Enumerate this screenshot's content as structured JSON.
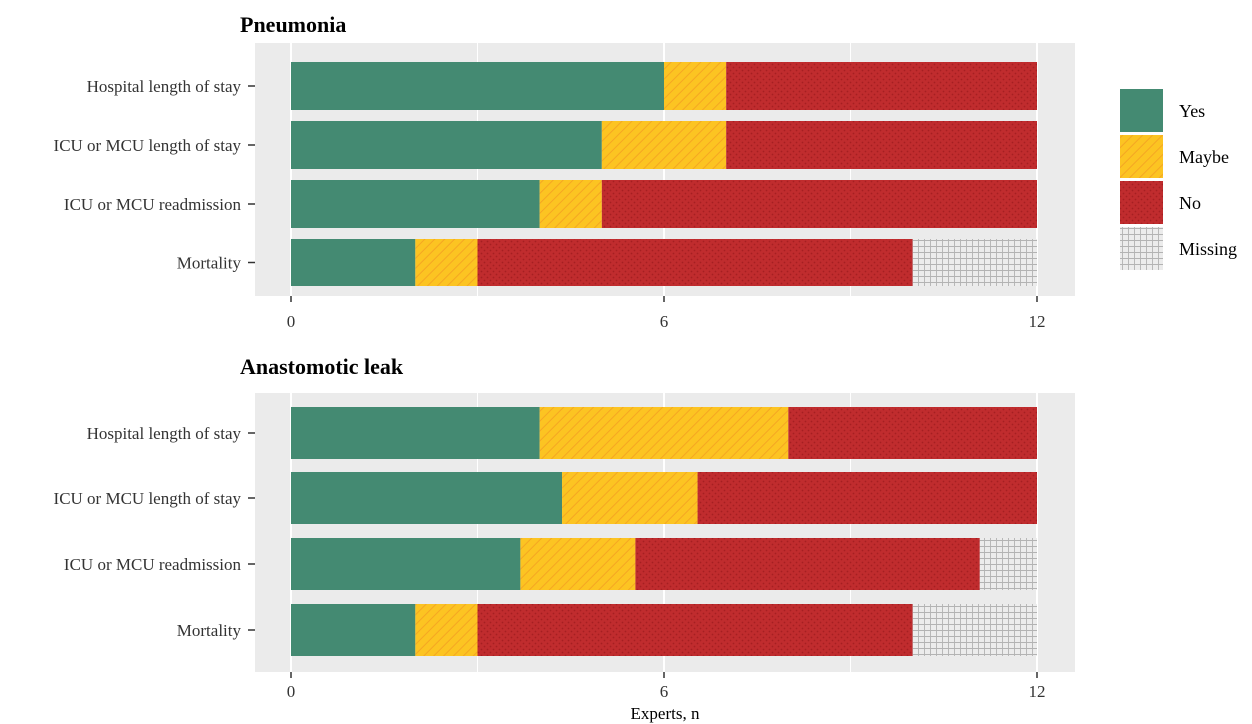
{
  "chart_data": [
    {
      "type": "bar",
      "orientation": "horizontal",
      "stacked": true,
      "title": "Pneumonia",
      "categories": [
        "Hospital length of stay",
        "ICU or MCU length of stay",
        "ICU or MCU readmission",
        "Mortality"
      ],
      "series": [
        {
          "name": "Yes",
          "values": [
            6,
            5,
            4,
            2
          ]
        },
        {
          "name": "Maybe",
          "values": [
            1,
            2,
            1,
            1
          ]
        },
        {
          "name": "No",
          "values": [
            5,
            5,
            7,
            7
          ]
        },
        {
          "name": "Missing",
          "values": [
            0,
            0,
            0,
            2
          ]
        }
      ],
      "xlim": [
        0,
        12
      ],
      "xticks": [
        "0",
        "6",
        "12"
      ],
      "xlabel": "",
      "grid": true
    },
    {
      "type": "bar",
      "orientation": "horizontal",
      "stacked": true,
      "title": "Anastomotic leak",
      "categories": [
        "Hospital length of stay",
        "ICU or MCU length of stay",
        "ICU or MCU readmission",
        "Mortality"
      ],
      "series": [
        {
          "name": "Yes",
          "values": [
            4,
            4.36,
            3.69,
            2
          ]
        },
        {
          "name": "Maybe",
          "values": [
            4,
            2.18,
            1.85,
            1
          ]
        },
        {
          "name": "No",
          "values": [
            4,
            5.46,
            5.54,
            7
          ]
        },
        {
          "name": "Missing",
          "values": [
            0,
            0,
            0.92,
            2
          ]
        }
      ],
      "xlim": [
        0,
        12
      ],
      "xticks": [
        "0",
        "6",
        "12"
      ],
      "xlabel": "Experts, n",
      "grid": true
    }
  ],
  "legend": {
    "placement": "right",
    "items": [
      {
        "name": "Yes",
        "color": "#448a72",
        "pattern": "none"
      },
      {
        "name": "Maybe",
        "color": "#fcc422",
        "pattern": "stripe"
      },
      {
        "name": "No",
        "color": "#c02c2e",
        "pattern": "dots"
      },
      {
        "name": "Missing",
        "color": "#e7e7e7",
        "pattern": "crosshatch"
      }
    ]
  },
  "colors": {
    "panel_background": "#ebebeb",
    "gridline": "#ffffff"
  }
}
